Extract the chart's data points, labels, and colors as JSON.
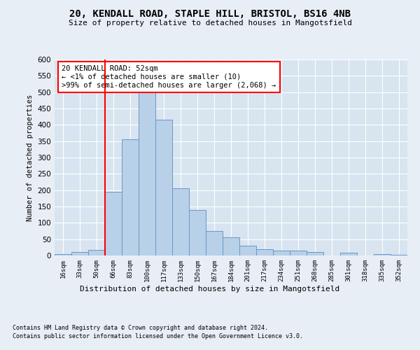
{
  "title1": "20, KENDALL ROAD, STAPLE HILL, BRISTOL, BS16 4NB",
  "title2": "Size of property relative to detached houses in Mangotsfield",
  "xlabel": "Distribution of detached houses by size in Mangotsfield",
  "ylabel": "Number of detached properties",
  "categories": [
    "16sqm",
    "33sqm",
    "50sqm",
    "66sqm",
    "83sqm",
    "100sqm",
    "117sqm",
    "133sqm",
    "150sqm",
    "167sqm",
    "184sqm",
    "201sqm",
    "217sqm",
    "234sqm",
    "251sqm",
    "268sqm",
    "285sqm",
    "301sqm",
    "318sqm",
    "335sqm",
    "352sqm"
  ],
  "values": [
    5,
    10,
    18,
    195,
    355,
    510,
    415,
    205,
    140,
    75,
    55,
    30,
    20,
    15,
    15,
    10,
    0,
    8,
    0,
    5,
    2
  ],
  "bar_color": "#b8d0e8",
  "bar_edge_color": "#6898c8",
  "red_line_x": 2.5,
  "annotation_text": "20 KENDALL ROAD: 52sqm\n← <1% of detached houses are smaller (10)\n>99% of semi-detached houses are larger (2,068) →",
  "annotation_box_color": "white",
  "annotation_box_edge_color": "red",
  "footer1": "Contains HM Land Registry data © Crown copyright and database right 2024.",
  "footer2": "Contains public sector information licensed under the Open Government Licence v3.0.",
  "ylim": [
    0,
    600
  ],
  "yticks": [
    0,
    50,
    100,
    150,
    200,
    250,
    300,
    350,
    400,
    450,
    500,
    550,
    600
  ],
  "bg_color": "#e8eef5",
  "plot_bg_color": "#d8e4f0"
}
